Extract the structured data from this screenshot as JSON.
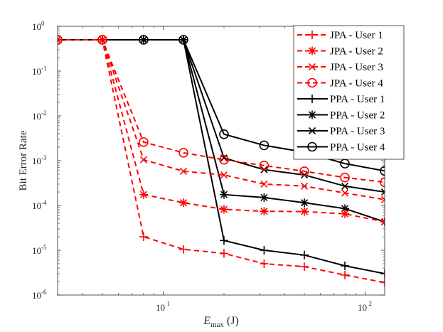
{
  "chart_data": {
    "type": "line",
    "title": "",
    "xscale": "log",
    "yscale": "log",
    "xlim": [
      3,
      125
    ],
    "ylim": [
      1e-06,
      1
    ],
    "ylabel": "Bit Error Rate",
    "xlabel": {
      "symbol": "E",
      "subscript": "max",
      "unit": " (J)"
    },
    "xticks": [
      {
        "value": 10,
        "base": "10",
        "exp": "1"
      },
      {
        "value": 100,
        "base": "10",
        "exp": "2"
      }
    ],
    "yticks": [
      {
        "value": 1,
        "base": "10",
        "exp": "0"
      },
      {
        "value": 0.1,
        "base": "10",
        "exp": "-1"
      },
      {
        "value": 0.01,
        "base": "10",
        "exp": "-2"
      },
      {
        "value": 0.001,
        "base": "10",
        "exp": "-3"
      },
      {
        "value": 0.0001,
        "base": "10",
        "exp": "-4"
      },
      {
        "value": 1e-05,
        "base": "10",
        "exp": "-5"
      },
      {
        "value": 1e-06,
        "base": "10",
        "exp": "-6"
      }
    ],
    "legend_position": "top-right",
    "series": [
      {
        "name": "JPA - User 1",
        "color": "#ff0000",
        "dash": "dashed",
        "marker": "plus",
        "x": [
          3,
          5,
          8,
          12.6,
          20,
          31.6,
          50,
          79.4,
          125
        ],
        "y": [
          0.5,
          0.5,
          2e-05,
          1.05e-05,
          8.5e-06,
          5e-06,
          4.3e-06,
          2.8e-06,
          1.9e-06
        ]
      },
      {
        "name": "JPA - User 2",
        "color": "#ff0000",
        "dash": "dashed",
        "marker": "star",
        "x": [
          3,
          5,
          8,
          12.6,
          20,
          31.6,
          50,
          79.4,
          125
        ],
        "y": [
          0.5,
          0.5,
          0.000175,
          0.000115,
          8.2e-05,
          7.4e-05,
          7.3e-05,
          6.5e-05,
          4.3e-05
        ]
      },
      {
        "name": "JPA - User 3",
        "color": "#ff0000",
        "dash": "dashed",
        "marker": "x",
        "x": [
          3,
          5,
          8,
          12.6,
          20,
          31.6,
          50,
          79.4,
          125
        ],
        "y": [
          0.5,
          0.5,
          0.00105,
          0.00058,
          0.00048,
          0.0003,
          0.00027,
          0.00019,
          0.000135
        ]
      },
      {
        "name": "JPA - User 4",
        "color": "#ff0000",
        "dash": "dashed",
        "marker": "circle",
        "x": [
          3,
          5,
          8,
          12.6,
          20,
          31.6,
          50,
          79.4,
          125
        ],
        "y": [
          0.5,
          0.5,
          0.0026,
          0.0015,
          0.00105,
          0.00078,
          0.00058,
          0.00042,
          0.00033
        ]
      },
      {
        "name": "PPA - User 1",
        "color": "#000000",
        "dash": "solid",
        "marker": "plus",
        "x": [
          3,
          5,
          8,
          12.6,
          20,
          31.6,
          50,
          79.4,
          125
        ],
        "y": [
          0.5,
          0.5,
          0.5,
          0.5,
          1.65e-05,
          1e-05,
          7.8e-06,
          4.5e-06,
          3e-06
        ]
      },
      {
        "name": "PPA - User 2",
        "color": "#000000",
        "dash": "solid",
        "marker": "star",
        "x": [
          3,
          5,
          8,
          12.6,
          20,
          31.6,
          50,
          79.4,
          125
        ],
        "y": [
          0.5,
          0.5,
          0.5,
          0.5,
          0.000175,
          0.00015,
          0.000115,
          8.5e-05,
          4.3e-05
        ]
      },
      {
        "name": "PPA - User 3",
        "color": "#000000",
        "dash": "solid",
        "marker": "x",
        "x": [
          3,
          5,
          8,
          12.6,
          20,
          31.6,
          50,
          79.4,
          125
        ],
        "y": [
          0.5,
          0.5,
          0.5,
          0.5,
          0.00115,
          0.00063,
          0.00048,
          0.00027,
          0.0002
        ]
      },
      {
        "name": "PPA - User 4",
        "color": "#000000",
        "dash": "solid",
        "marker": "circle",
        "x": [
          3,
          5,
          8,
          12.6,
          20,
          31.6,
          50,
          79.4,
          125
        ],
        "y": [
          0.5,
          0.5,
          0.5,
          0.5,
          0.0039,
          0.0022,
          0.00155,
          0.00086,
          0.00059
        ]
      }
    ]
  }
}
